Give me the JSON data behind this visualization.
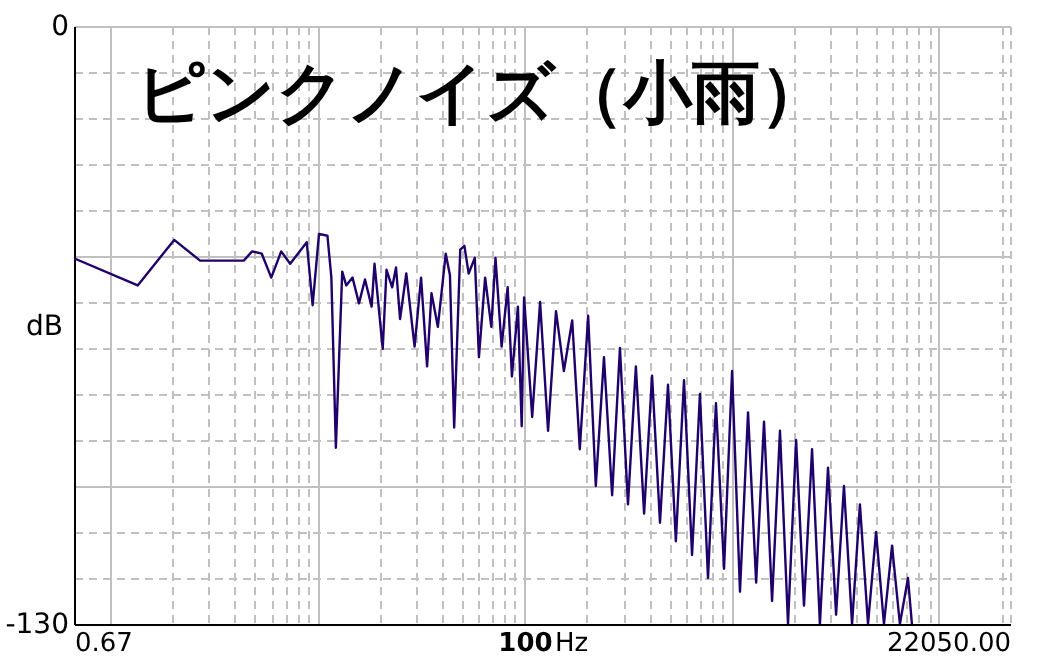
{
  "chart_data": {
    "type": "line",
    "title": "ピンクノイズ（小雨）",
    "xlabel": "Hz",
    "ylabel": "dB",
    "log": "x",
    "grid": true,
    "marker": "none",
    "line_style": "solid",
    "xlim": [
      0.67,
      22050
    ],
    "ylim": [
      -130,
      0
    ],
    "xticks": [
      {
        "value": 0.67,
        "label": "0.67"
      },
      {
        "value": 1,
        "label": null
      },
      {
        "value": 2,
        "label": null
      },
      {
        "value": 3,
        "label": null
      },
      {
        "value": 4,
        "label": null
      },
      {
        "value": 5,
        "label": null
      },
      {
        "value": 6,
        "label": null
      },
      {
        "value": 7,
        "label": null
      },
      {
        "value": 8,
        "label": null
      },
      {
        "value": 9,
        "label": null
      },
      {
        "value": 10,
        "label": null
      },
      {
        "value": 20,
        "label": null
      },
      {
        "value": 30,
        "label": null
      },
      {
        "value": 40,
        "label": null
      },
      {
        "value": 50,
        "label": null
      },
      {
        "value": 60,
        "label": null
      },
      {
        "value": 70,
        "label": null
      },
      {
        "value": 80,
        "label": null
      },
      {
        "value": 90,
        "label": null
      },
      100,
      {
        "value": 200,
        "label": null
      },
      {
        "value": 300,
        "label": null
      },
      {
        "value": 400,
        "label": null
      },
      {
        "value": 500,
        "label": null
      },
      {
        "value": 600,
        "label": null
      },
      {
        "value": 700,
        "label": null
      },
      {
        "value": 800,
        "label": null
      },
      {
        "value": 900,
        "label": null
      },
      {
        "value": 1000,
        "label": null
      },
      {
        "value": 2000,
        "label": null
      },
      {
        "value": 3000,
        "label": null
      },
      {
        "value": 4000,
        "label": null
      },
      {
        "value": 5000,
        "label": null
      },
      {
        "value": 6000,
        "label": null
      },
      {
        "value": 7000,
        "label": null
      },
      {
        "value": 8000,
        "label": null
      },
      {
        "value": 9000,
        "label": null
      },
      {
        "value": 10000,
        "label": null
      },
      {
        "value": 20000,
        "label": null
      },
      {
        "value": 22050,
        "label": "22050.00"
      }
    ],
    "yticks": [
      0,
      {
        "value": -10,
        "label": null
      },
      {
        "value": -20,
        "label": null
      },
      {
        "value": -30,
        "label": null
      },
      {
        "value": -40,
        "label": null
      },
      {
        "value": -50,
        "label": null
      },
      {
        "value": -60,
        "label": null
      },
      {
        "value": -70,
        "label": null
      },
      {
        "value": -80,
        "label": null
      },
      {
        "value": -90,
        "label": null
      },
      {
        "value": -100,
        "label": null
      },
      {
        "value": -110,
        "label": null
      },
      {
        "value": -120,
        "label": null
      },
      -130
    ],
    "x": [
      0.67,
      1.36,
      2.04,
      2.72,
      4.42,
      4.85,
      5.4,
      6.0,
      6.7,
      7.4,
      8.9,
      9.5,
      10.2,
      11.2,
      11.7,
      12.3,
      13.2,
      13.8,
      14.8,
      15.9,
      17.0,
      18.3,
      18.9,
      20.7,
      21.6,
      23,
      24,
      25.1,
      26.9,
      29.5,
      31.7,
      33.9,
      35.6,
      38.2,
      41.7,
      43.7,
      45.8,
      49,
      51.3,
      53.8,
      57.6,
      60.3,
      64.6,
      69.2,
      72.5,
      77.6,
      83,
      87,
      93,
      97,
      99.6,
      109,
      119,
      130,
      142,
      155,
      170,
      185,
      203,
      221,
      242,
      265,
      289,
      316,
      345,
      378,
      413,
      451,
      493,
      538,
      589,
      644,
      703,
      769,
      840,
      919,
      1005,
      1097,
      1200,
      1313,
      1433,
      1567,
      1711,
      1871,
      2047,
      2234,
      2444,
      2667,
      2918,
      3192,
      3484,
      3812,
      4160,
      4551,
      4978,
      5434,
      5944,
      6488,
      7097,
      7414
    ],
    "series": [
      {
        "color": "#20006a",
        "values": [
          -50.5,
          -56.4,
          -46.5,
          -51,
          -51,
          -49,
          -49.5,
          -54.7,
          -49,
          -51.7,
          -47,
          -60.7,
          -45.2,
          -45.6,
          -54.7,
          -91.7,
          -53.4,
          -56.4,
          -54.7,
          -60.3,
          -55.1,
          -61,
          -51.7,
          -70.2,
          -53,
          -56.8,
          -52.5,
          -63.7,
          -53.8,
          -69.7,
          -54.7,
          -74,
          -58.1,
          -65.4,
          -49.5,
          -54.2,
          -87.3,
          -48.6,
          -47.8,
          -53.8,
          -50.4,
          -72,
          -54.7,
          -65.4,
          -50.4,
          -69.7,
          -56.8,
          -76.2,
          -61,
          -87,
          -59,
          -85,
          -60,
          -88,
          -62,
          -75,
          -64,
          -92,
          -63,
          -100,
          -72,
          -102,
          -70,
          -104,
          -74,
          -106,
          -76,
          -108,
          -78,
          -112,
          -77,
          -115,
          -80,
          -120,
          -82,
          -118,
          -75,
          -123,
          -84,
          -121,
          -86,
          -125,
          -88,
          -130,
          -90,
          -126,
          -92,
          -130,
          -96,
          -128,
          -100,
          -130,
          -104,
          -130,
          -110,
          -130,
          -113,
          -130,
          -120,
          -130
        ]
      }
    ]
  }
}
